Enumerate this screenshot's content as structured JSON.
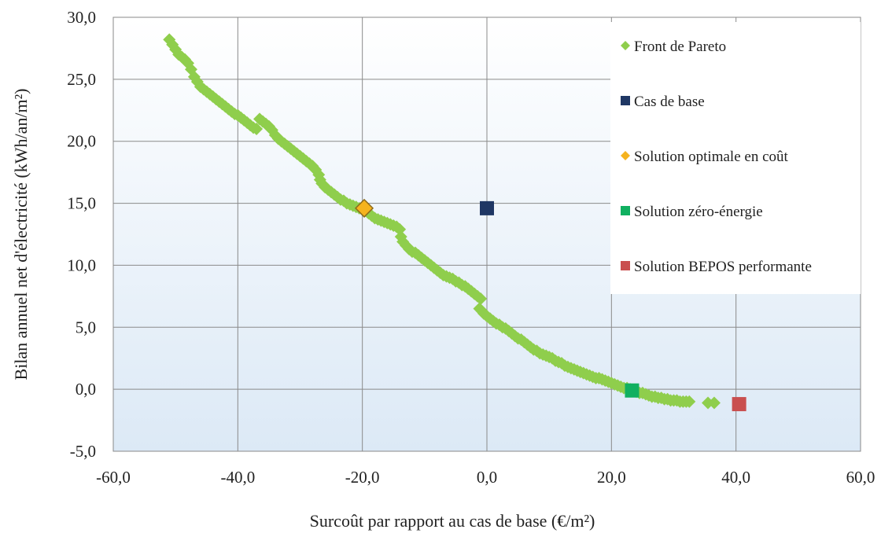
{
  "chart_data": {
    "type": "scatter",
    "xlabel": "Surcoût par rapport au cas de base (€/m²)",
    "ylabel": "Bilan annuel net d'électricité (kWh/an/m²)",
    "xlim": [
      -60,
      60
    ],
    "ylim": [
      -5,
      30
    ],
    "xticks": [
      -60,
      -40,
      -20,
      0,
      20,
      40,
      60
    ],
    "yticks": [
      -5,
      0,
      5,
      10,
      15,
      20,
      25,
      30
    ],
    "xtick_labels": [
      "-60,0",
      "-40,0",
      "-20,0",
      "0,0",
      "20,0",
      "40,0",
      "60,0"
    ],
    "ytick_labels": [
      "-5,0",
      "0,0",
      "5,0",
      "10,0",
      "15,0",
      "20,0",
      "25,0",
      "30,0"
    ],
    "grid": true,
    "legend_position": "right",
    "series": [
      {
        "name": "Front de Pareto",
        "marker": "diamond",
        "color": "#8fce4c",
        "points": [
          [
            -51,
            28.2
          ],
          [
            -50.5,
            27.8
          ],
          [
            -50,
            27.4
          ],
          [
            -49.5,
            27
          ],
          [
            -49,
            26.8
          ],
          [
            -48.5,
            26.6
          ],
          [
            -48,
            26.3
          ],
          [
            -47.5,
            25.8
          ],
          [
            -47,
            25.2
          ],
          [
            -46.5,
            24.8
          ],
          [
            -46,
            24.4
          ],
          [
            -45.5,
            24.2
          ],
          [
            -45,
            24.0
          ],
          [
            -44.5,
            23.8
          ],
          [
            -44,
            23.6
          ],
          [
            -43.5,
            23.4
          ],
          [
            -43,
            23.2
          ],
          [
            -42.5,
            23.0
          ],
          [
            -42,
            22.8
          ],
          [
            -41.5,
            22.6
          ],
          [
            -41,
            22.4
          ],
          [
            -40.5,
            22.2
          ],
          [
            -40,
            22.1
          ],
          [
            -39.5,
            21.9
          ],
          [
            -39,
            21.7
          ],
          [
            -38.5,
            21.5
          ],
          [
            -38,
            21.3
          ],
          [
            -37.5,
            21.1
          ],
          [
            -37,
            21.0
          ],
          [
            -36.5,
            21.8
          ],
          [
            -36,
            21.6
          ],
          [
            -35.5,
            21.4
          ],
          [
            -35,
            21.2
          ],
          [
            -34.5,
            20.9
          ],
          [
            -34,
            20.5
          ],
          [
            -33.5,
            20.2
          ],
          [
            -33,
            20.0
          ],
          [
            -32.5,
            19.8
          ],
          [
            -32,
            19.6
          ],
          [
            -31.5,
            19.4
          ],
          [
            -31,
            19.2
          ],
          [
            -30.5,
            19.0
          ],
          [
            -30,
            18.8
          ],
          [
            -29.5,
            18.6
          ],
          [
            -29,
            18.4
          ],
          [
            -28.5,
            18.2
          ],
          [
            -28,
            18.0
          ],
          [
            -27.5,
            17.7
          ],
          [
            -27,
            17.3
          ],
          [
            -26.8,
            16.9
          ],
          [
            -26.5,
            16.6
          ],
          [
            -26,
            16.3
          ],
          [
            -25.5,
            16.1
          ],
          [
            -25,
            15.9
          ],
          [
            -24.5,
            15.7
          ],
          [
            -24,
            15.5
          ],
          [
            -23.5,
            15.3
          ],
          [
            -23,
            15.2
          ],
          [
            -22.5,
            15.0
          ],
          [
            -22,
            14.9
          ],
          [
            -21.5,
            14.8
          ],
          [
            -21,
            14.7
          ],
          [
            -20.5,
            14.6
          ],
          [
            -20,
            14.5
          ],
          [
            -19.5,
            14.4
          ],
          [
            -19,
            14.2
          ],
          [
            -18.5,
            14.0
          ],
          [
            -18,
            13.8
          ],
          [
            -17.5,
            13.7
          ],
          [
            -17,
            13.6
          ],
          [
            -16.5,
            13.5
          ],
          [
            -16,
            13.4
          ],
          [
            -15.5,
            13.3
          ],
          [
            -15,
            13.2
          ],
          [
            -14.5,
            13.1
          ],
          [
            -14,
            12.9
          ],
          [
            -13.8,
            12.3
          ],
          [
            -13.5,
            11.9
          ],
          [
            -13,
            11.6
          ],
          [
            -12.5,
            11.3
          ],
          [
            -12,
            11.1
          ],
          [
            -11.5,
            11.0
          ],
          [
            -11,
            10.8
          ],
          [
            -10.5,
            10.6
          ],
          [
            -10,
            10.4
          ],
          [
            -9.5,
            10.2
          ],
          [
            -9,
            10.0
          ],
          [
            -8.5,
            9.8
          ],
          [
            -8,
            9.6
          ],
          [
            -7.5,
            9.4
          ],
          [
            -7,
            9.2
          ],
          [
            -6.5,
            9.1
          ],
          [
            -6,
            9.0
          ],
          [
            -5.5,
            8.9
          ],
          [
            -5,
            8.7
          ],
          [
            -4.5,
            8.6
          ],
          [
            -4,
            8.4
          ],
          [
            -3.5,
            8.3
          ],
          [
            -3,
            8.1
          ],
          [
            -2.5,
            7.9
          ],
          [
            -2,
            7.7
          ],
          [
            -1.5,
            7.5
          ],
          [
            -1,
            7.3
          ],
          [
            -1.2,
            6.5
          ],
          [
            -0.8,
            6.3
          ],
          [
            -0.5,
            6.1
          ],
          [
            0,
            5.9
          ],
          [
            0.5,
            5.7
          ],
          [
            1,
            5.5
          ],
          [
            1.5,
            5.3
          ],
          [
            2,
            5.2
          ],
          [
            2.5,
            5.0
          ],
          [
            3,
            4.9
          ],
          [
            3.5,
            4.7
          ],
          [
            4,
            4.5
          ],
          [
            4.5,
            4.3
          ],
          [
            5,
            4.1
          ],
          [
            5.5,
            4.0
          ],
          [
            6,
            3.8
          ],
          [
            6.5,
            3.6
          ],
          [
            7,
            3.4
          ],
          [
            7.5,
            3.2
          ],
          [
            8,
            3.1
          ],
          [
            8.5,
            2.9
          ],
          [
            9,
            2.8
          ],
          [
            9.5,
            2.7
          ],
          [
            10,
            2.6
          ],
          [
            10.5,
            2.5
          ],
          [
            11,
            2.3
          ],
          [
            11.5,
            2.2
          ],
          [
            12,
            2.1
          ],
          [
            12.5,
            1.9
          ],
          [
            13,
            1.8
          ],
          [
            13.5,
            1.7
          ],
          [
            14,
            1.6
          ],
          [
            14.5,
            1.5
          ],
          [
            15,
            1.4
          ],
          [
            15.5,
            1.3
          ],
          [
            16,
            1.2
          ],
          [
            16.5,
            1.1
          ],
          [
            17,
            1.0
          ],
          [
            17.5,
            0.9
          ],
          [
            18,
            0.9
          ],
          [
            18.5,
            0.8
          ],
          [
            19,
            0.7
          ],
          [
            19.5,
            0.6
          ],
          [
            20,
            0.5
          ],
          [
            20.5,
            0.4
          ],
          [
            21,
            0.3
          ],
          [
            21.5,
            0.2
          ],
          [
            22,
            0.1
          ],
          [
            22.5,
            0.1
          ],
          [
            23,
            0.0
          ],
          [
            23.5,
            -0.1
          ],
          [
            24,
            -0.2
          ],
          [
            24.5,
            -0.3
          ],
          [
            25,
            -0.3
          ],
          [
            25.5,
            -0.4
          ],
          [
            26,
            -0.5
          ],
          [
            26.5,
            -0.6
          ],
          [
            27,
            -0.6
          ],
          [
            27.5,
            -0.7
          ],
          [
            28,
            -0.7
          ],
          [
            28.5,
            -0.8
          ],
          [
            29,
            -0.8
          ],
          [
            29.5,
            -0.9
          ],
          [
            30,
            -0.9
          ],
          [
            30.5,
            -0.9
          ],
          [
            31,
            -1.0
          ],
          [
            31.5,
            -1.0
          ],
          [
            32,
            -1.0
          ],
          [
            32.5,
            -1.0
          ],
          [
            35.5,
            -1.1
          ],
          [
            36.5,
            -1.1
          ]
        ]
      },
      {
        "name": "Cas de base",
        "marker": "square",
        "color": "#1f3764",
        "points": [
          [
            0,
            14.6
          ]
        ]
      },
      {
        "name": "Solution optimale en coût",
        "marker": "diamond",
        "color": "#f5b31f",
        "points": [
          [
            -19.7,
            14.6
          ]
        ]
      },
      {
        "name": "Solution zéro-énergie",
        "marker": "square",
        "color": "#10b060",
        "points": [
          [
            23.3,
            -0.1
          ]
        ]
      },
      {
        "name": "Solution BEPOS performante",
        "marker": "square",
        "color": "#c94f4f",
        "points": [
          [
            40.5,
            -1.2
          ]
        ]
      }
    ]
  }
}
